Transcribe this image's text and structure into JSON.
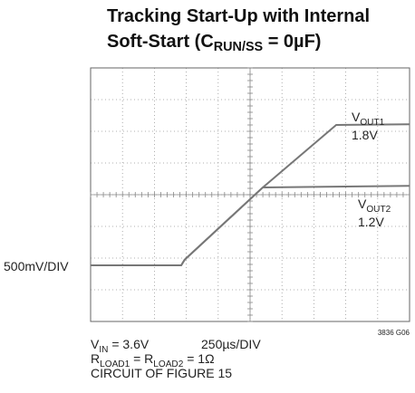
{
  "chart_data": {
    "type": "line",
    "title": [
      [
        {
          "text": "Tracking Start-Up with Internal"
        }
      ],
      [
        {
          "text": "Soft-Start (C"
        },
        {
          "text": "RUN/SS",
          "sub": true
        },
        {
          "text": " = 0µF)"
        }
      ]
    ],
    "y_scale_label": "500mV/DIV",
    "x_scale_label": "250µs/DIV",
    "notes": [
      [
        {
          "text": "V"
        },
        {
          "text": "IN",
          "sub": true
        },
        {
          "text": " = 3.6V"
        }
      ],
      [
        {
          "text": "R"
        },
        {
          "text": "LOAD1",
          "sub": true
        },
        {
          "text": " = R"
        },
        {
          "text": "LOAD2",
          "sub": true
        },
        {
          "text": " = 1Ω"
        }
      ],
      [
        {
          "text": "CIRCUIT OF FIGURE 15"
        }
      ]
    ],
    "figure_id": "3836 G06",
    "xlim": [
      0,
      10
    ],
    "ylim": [
      0,
      8
    ],
    "xticks": [
      0,
      1,
      2,
      3,
      4,
      5,
      6,
      7,
      8,
      9,
      10
    ],
    "yticks": [
      0,
      1,
      2,
      3,
      4,
      5,
      6,
      7,
      8
    ],
    "grid": true,
    "series": [
      {
        "label": [
          {
            "text": "V"
          },
          {
            "text": "OUT1",
            "sub": true
          }
        ],
        "value_label": "1.8V",
        "color": "#777777",
        "x": [
          0,
          2.84,
          2.95,
          5.4,
          7.7,
          10
        ],
        "values": [
          1.77,
          1.77,
          1.95,
          4.23,
          6.2,
          6.22
        ]
      },
      {
        "label": [
          {
            "text": "V"
          },
          {
            "text": "OUT2",
            "sub": true
          }
        ],
        "value_label": "1.2V",
        "color": "#777777",
        "x": [
          0,
          2.84,
          2.95,
          5.4,
          10
        ],
        "values": [
          1.77,
          1.77,
          1.95,
          4.23,
          4.28
        ]
      }
    ]
  }
}
